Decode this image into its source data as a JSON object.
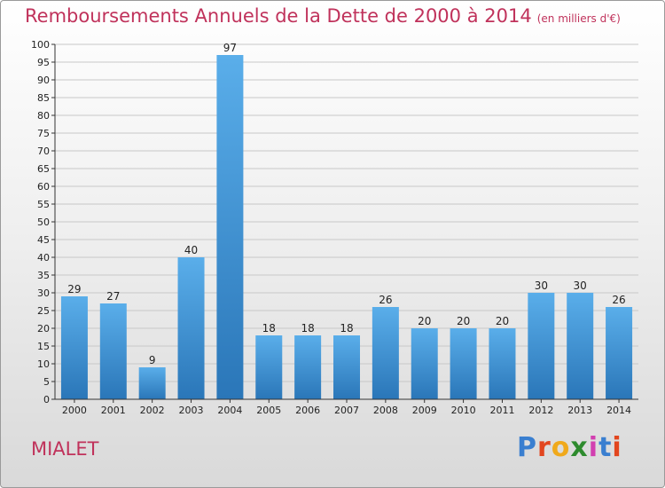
{
  "title": "Remboursements Annuels de la Dette de 2000 à 2014",
  "unit": "(en milliers d'€)",
  "commune": "MIALET",
  "logo": {
    "text": "Proxiti",
    "colors": [
      "#3a7fd0",
      "#e2461f",
      "#f0a91c",
      "#2e8b2e",
      "#d23fb0",
      "#3a7fd0",
      "#e2461f"
    ]
  },
  "colors": {
    "title": "#c0325b",
    "bar_top": "#5aaeea",
    "bar_bottom": "#2a76b8",
    "axis": "#333333"
  },
  "chart_data": {
    "type": "bar",
    "categories": [
      "2000",
      "2001",
      "2002",
      "2003",
      "2004",
      "2005",
      "2006",
      "2007",
      "2008",
      "2009",
      "2010",
      "2011",
      "2012",
      "2013",
      "2014"
    ],
    "values": [
      29,
      27,
      9,
      40,
      97,
      18,
      18,
      18,
      26,
      20,
      20,
      20,
      30,
      30,
      26
    ],
    "ylim": [
      0,
      100
    ],
    "yticks": [
      0,
      5,
      10,
      15,
      20,
      25,
      30,
      35,
      40,
      45,
      50,
      55,
      60,
      65,
      70,
      75,
      80,
      85,
      90,
      95,
      100
    ],
    "grid": true,
    "xlabel": "",
    "ylabel": ""
  }
}
